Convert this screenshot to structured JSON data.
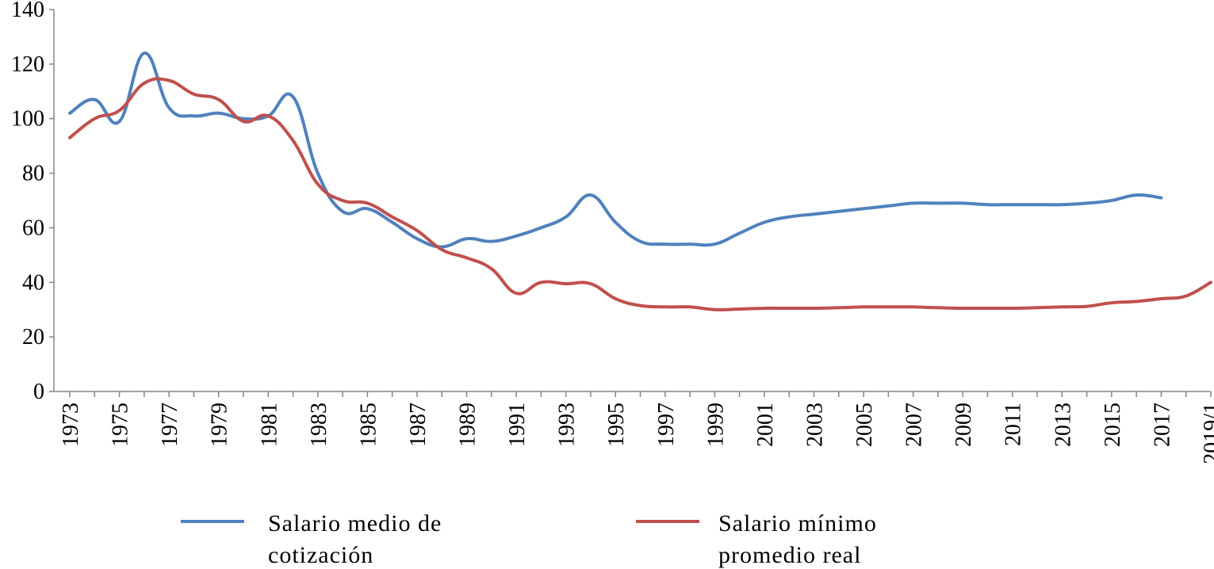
{
  "chart_data": {
    "type": "line",
    "title": "",
    "xlabel": "",
    "ylabel": "",
    "ylim": [
      0,
      140
    ],
    "yticks": [
      0,
      20,
      40,
      60,
      80,
      100,
      120,
      140
    ],
    "x": [
      1973,
      1974,
      1975,
      1976,
      1977,
      1978,
      1979,
      1980,
      1981,
      1982,
      1983,
      1984,
      1985,
      1986,
      1987,
      1988,
      1989,
      1990,
      1991,
      1992,
      1993,
      1994,
      1995,
      1996,
      1997,
      1998,
      1999,
      2000,
      2001,
      2002,
      2003,
      2004,
      2005,
      2006,
      2007,
      2008,
      2009,
      2010,
      2011,
      2012,
      2013,
      2014,
      2015,
      2016,
      2017,
      2018,
      2019
    ],
    "x_tick_labels": [
      "1973",
      "1975",
      "1977",
      "1979",
      "1981",
      "1983",
      "1985",
      "1987",
      "1989",
      "1991",
      "1993",
      "1995",
      "1997",
      "1999",
      "2001",
      "2003",
      "2005",
      "2007",
      "2009",
      "2011",
      "2013",
      "2015",
      "2017",
      "2019/1"
    ],
    "grid": false,
    "legend_position": "bottom",
    "series": [
      {
        "name": "Salario medio de cotización",
        "color": "#4f81bd",
        "values": [
          102,
          107,
          99,
          124,
          104,
          101,
          102,
          100,
          101,
          108,
          80,
          66,
          67,
          62,
          56,
          53,
          56,
          55,
          57,
          60,
          64,
          72,
          62,
          55,
          54,
          54,
          54,
          58,
          62,
          64,
          65,
          66,
          67,
          68,
          69,
          69,
          69,
          68.5,
          68.5,
          68.5,
          68.5,
          69,
          70,
          72,
          71,
          null,
          null
        ]
      },
      {
        "name": "Salario mínimo promedio real",
        "color": "#c0504d",
        "values": [
          93,
          100,
          103,
          113,
          114,
          109,
          107,
          99,
          101,
          92,
          76,
          70,
          69,
          64,
          59,
          52,
          49,
          45,
          36,
          40,
          39.5,
          39.5,
          34,
          31.5,
          31,
          31,
          30,
          30.2,
          30.5,
          30.5,
          30.5,
          30.7,
          31,
          31,
          31,
          30.7,
          30.5,
          30.5,
          30.5,
          30.7,
          31,
          31.2,
          32.5,
          33,
          34,
          35,
          40
        ]
      }
    ],
    "legend": [
      {
        "lines": [
          "Salario medio de",
          "cotización"
        ]
      },
      {
        "lines": [
          "Salario mínimo",
          "promedio real"
        ]
      }
    ]
  }
}
